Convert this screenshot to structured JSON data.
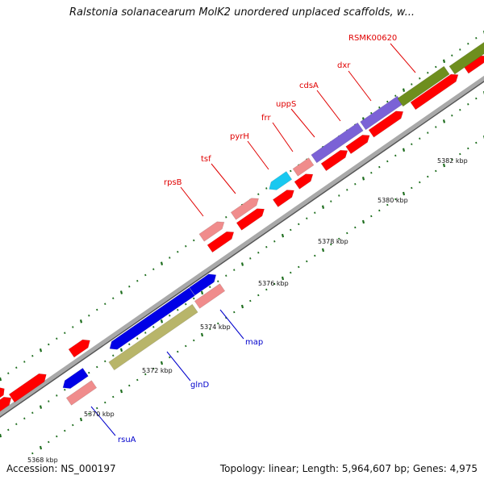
{
  "title": "Ralstonia solanacearum MolK2 unordered unplaced scaffolds, w...",
  "footer": {
    "accession": "Accession: NS_000197",
    "summary": "Topology: linear; Length: 5,964,607 bp; Genes: 4,975"
  },
  "colors": {
    "red": "#ff0000",
    "pink": "#f08c8c",
    "blue": "#0000e6",
    "cyan": "#19c8f0",
    "purple": "#7b62d6",
    "olive": "#6e8e1e",
    "khaki": "#b8b56a",
    "tick": "#1f6e1f",
    "backbone": "#a9a9a9",
    "label_top": "#e00000",
    "label_bottom": "#0000cc"
  },
  "scale_labels": [
    "5368 kbp",
    "5370 kbp",
    "5372 kbp",
    "5374 kbp",
    "5376 kbp",
    "5378 kbp",
    "5380 kbp",
    "5382 kbp"
  ],
  "gene_labels_top": [
    "rpsB",
    "tsf",
    "pyrH",
    "frr",
    "uppS",
    "cdsA",
    "dxr",
    "RSMK00620"
  ],
  "gene_labels_bottom": [
    "rsuA",
    "glnD",
    "map"
  ]
}
